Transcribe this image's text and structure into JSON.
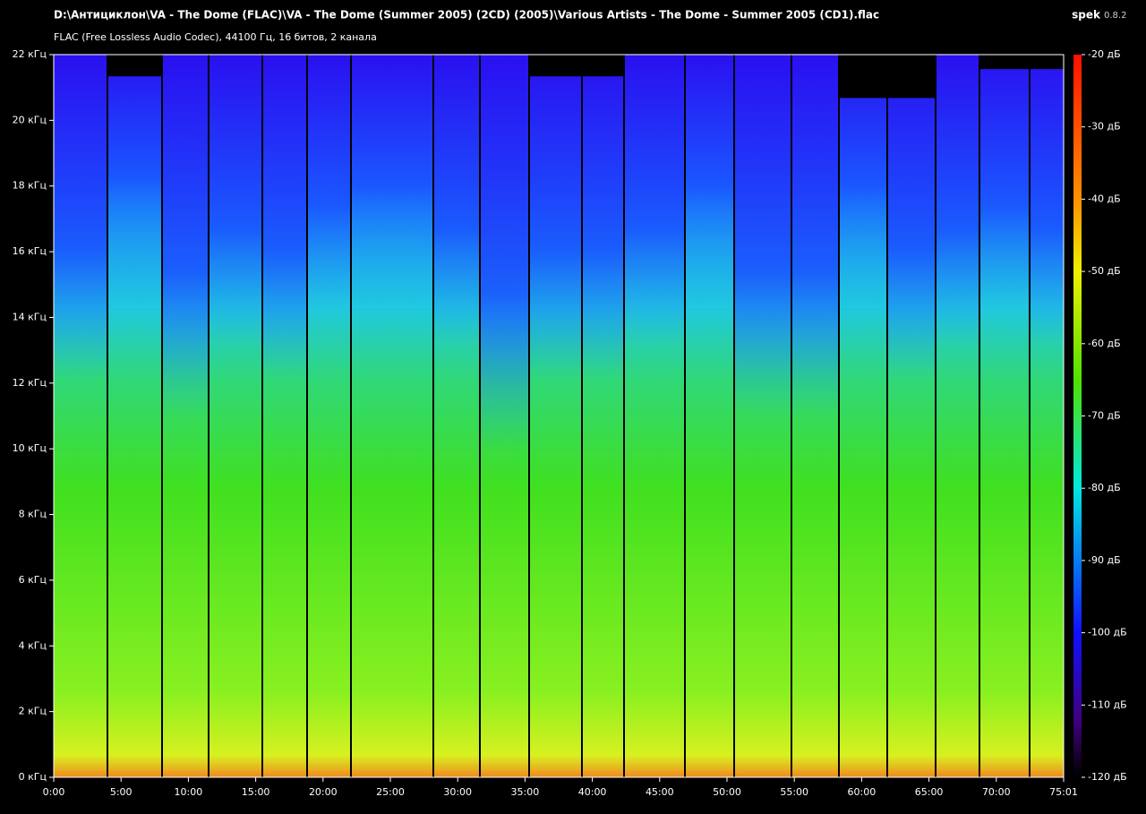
{
  "header": {
    "file_path": "D:\\Антициклон\\VA - The Dome (FLAC)\\VA - The Dome (Summer 2005) (2CD) (2005)\\Various Artists - The Dome - Summer 2005 (CD1).flac",
    "format_info": "FLAC (Free Lossless Audio Codec), 44100 Гц, 16 битов, 2 канала",
    "app_name": "spek",
    "app_version": "0.8.2"
  },
  "frequency_axis": {
    "labels": [
      "0 кГц",
      "2 кГц",
      "4 кГц",
      "6 кГц",
      "8 кГц",
      "10 кГц",
      "12 кГц",
      "14 кГц",
      "16 кГц",
      "18 кГц",
      "20 кГц",
      "22 кГц"
    ]
  },
  "time_axis": {
    "labels": [
      "0:00",
      "5:00",
      "10:00",
      "15:00",
      "20:00",
      "25:00",
      "30:00",
      "35:00",
      "40:00",
      "45:00",
      "50:00",
      "55:00",
      "60:00",
      "65:00",
      "70:00",
      "75:01"
    ]
  },
  "db_scale": {
    "labels": [
      "-20 дБ",
      "-30 дБ",
      "-40 дБ",
      "-50 дБ",
      "-60 дБ",
      "-70 дБ",
      "-80 дБ",
      "-90 дБ",
      "-100 дБ",
      "-110 дБ",
      "-120 дБ"
    ]
  }
}
